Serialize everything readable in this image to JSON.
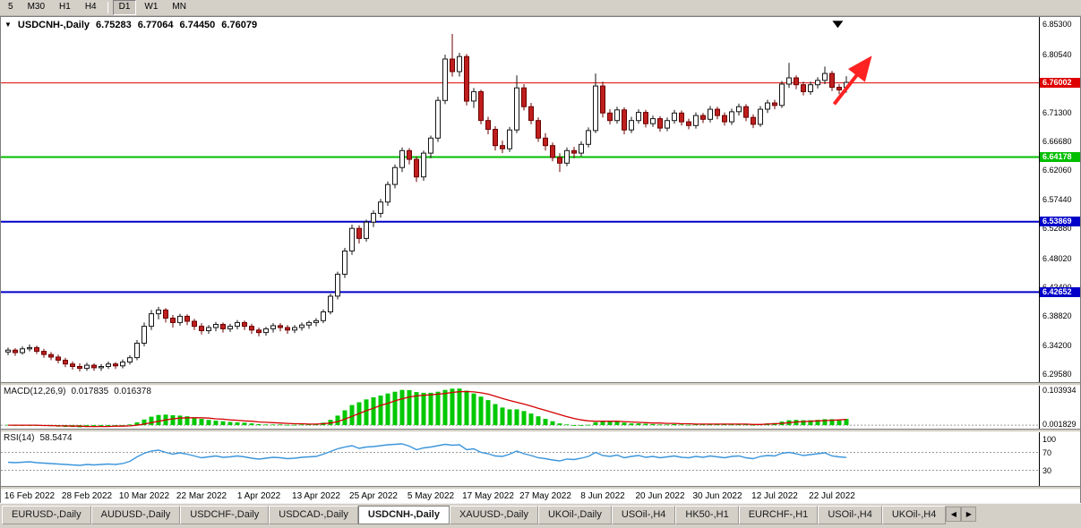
{
  "toolbar": {
    "timeframes": [
      {
        "label": "5"
      },
      {
        "label": "M30"
      },
      {
        "label": "H1"
      },
      {
        "label": "H4",
        "divider_after": true
      },
      {
        "label": "D1",
        "active": true
      },
      {
        "label": "W1"
      },
      {
        "label": "MN"
      }
    ]
  },
  "chart": {
    "title": {
      "symbol": "USDCNH-,Daily",
      "open": "6.75283",
      "high": "6.77064",
      "low": "6.74450",
      "close": "6.76079",
      "collapse_icon": "▼"
    },
    "colors": {
      "up_fill": "#FFFFFF",
      "up_stroke": "#151515",
      "down_fill": "#C01E1E",
      "down_stroke": "#6B0000",
      "macd_hist": "#00C800",
      "macd_signal": "#D40000",
      "rsi_line": "#3C96DC",
      "arrow": "#FF2222"
    }
  },
  "chart_data": {
    "type": "candlestick",
    "symbol": "USDCNH-,Daily",
    "ylim": [
      6.283,
      6.865
    ],
    "y_ticks": [
      {
        "label": "6.85300",
        "value": 6.853
      },
      {
        "label": "6.80540",
        "value": 6.8054
      },
      {
        "label": "6.71300",
        "value": 6.713
      },
      {
        "label": "6.66680",
        "value": 6.6668
      },
      {
        "label": "6.62060",
        "value": 6.6206
      },
      {
        "label": "6.57440",
        "value": 6.5744
      },
      {
        "label": "6.52880",
        "value": 6.5288
      },
      {
        "label": "6.48020",
        "value": 6.4802
      },
      {
        "label": "6.43400",
        "value": 6.434
      },
      {
        "label": "6.38820",
        "value": 6.3882
      },
      {
        "label": "6.34200",
        "value": 6.342
      },
      {
        "label": "6.29580",
        "value": 6.2958
      }
    ],
    "hlines": [
      {
        "label": "6.76002",
        "value": 6.76002,
        "color": "#DD0000",
        "width": 1
      },
      {
        "label": "6.64178",
        "value": 6.64178,
        "color": "#00BE00",
        "width": 2
      },
      {
        "label": "6.53869",
        "value": 6.53869,
        "color": "#0000C8",
        "width": 2
      },
      {
        "label": "6.42652",
        "value": 6.42652,
        "color": "#0000C8",
        "width": 2
      }
    ],
    "x_ticks": [
      {
        "index": 3,
        "label": "16 Feb 2022"
      },
      {
        "index": 11,
        "label": "28 Feb 2022"
      },
      {
        "index": 19,
        "label": "10 Mar 2022"
      },
      {
        "index": 27,
        "label": "22 Mar 2022"
      },
      {
        "index": 35,
        "label": "1 Apr 2022"
      },
      {
        "index": 43,
        "label": "13 Apr 2022"
      },
      {
        "index": 51,
        "label": "25 Apr 2022"
      },
      {
        "index": 59,
        "label": "5 May 2022"
      },
      {
        "index": 67,
        "label": "17 May 2022"
      },
      {
        "index": 75,
        "label": "27 May 2022"
      },
      {
        "index": 83,
        "label": "8 Jun 2022"
      },
      {
        "index": 91,
        "label": "20 Jun 2022"
      },
      {
        "index": 99,
        "label": "30 Jun 2022"
      },
      {
        "index": 107,
        "label": "12 Jul 2022"
      },
      {
        "index": 115,
        "label": "22 Jul 2022"
      }
    ],
    "ohlc": [
      [
        6.331,
        6.338,
        6.326,
        6.334
      ],
      [
        6.334,
        6.337,
        6.325,
        6.33
      ],
      [
        6.33,
        6.34,
        6.327,
        6.336
      ],
      [
        6.336,
        6.343,
        6.332,
        6.338
      ],
      [
        6.338,
        6.341,
        6.328,
        6.332
      ],
      [
        6.332,
        6.336,
        6.322,
        6.327
      ],
      [
        6.327,
        6.331,
        6.318,
        6.323
      ],
      [
        6.323,
        6.327,
        6.313,
        6.318
      ],
      [
        6.318,
        6.322,
        6.307,
        6.312
      ],
      [
        6.312,
        6.316,
        6.303,
        6.308
      ],
      [
        6.308,
        6.313,
        6.3,
        6.305
      ],
      [
        6.305,
        6.314,
        6.301,
        6.31
      ],
      [
        6.31,
        6.313,
        6.301,
        6.306
      ],
      [
        6.306,
        6.312,
        6.301,
        6.308
      ],
      [
        6.308,
        6.316,
        6.304,
        6.312
      ],
      [
        6.312,
        6.315,
        6.304,
        6.309
      ],
      [
        6.309,
        6.319,
        6.305,
        6.315
      ],
      [
        6.315,
        6.326,
        6.311,
        6.322
      ],
      [
        6.322,
        6.35,
        6.318,
        6.345
      ],
      [
        6.345,
        6.378,
        6.34,
        6.372
      ],
      [
        6.372,
        6.398,
        6.366,
        6.392
      ],
      [
        6.392,
        6.403,
        6.383,
        6.398
      ],
      [
        6.398,
        6.401,
        6.378,
        6.385
      ],
      [
        6.385,
        6.39,
        6.37,
        6.378
      ],
      [
        6.378,
        6.392,
        6.373,
        6.388
      ],
      [
        6.388,
        6.391,
        6.374,
        6.38
      ],
      [
        6.38,
        6.384,
        6.366,
        6.372
      ],
      [
        6.372,
        6.377,
        6.359,
        6.365
      ],
      [
        6.365,
        6.374,
        6.36,
        6.37
      ],
      [
        6.37,
        6.379,
        6.364,
        6.375
      ],
      [
        6.375,
        6.378,
        6.362,
        6.368
      ],
      [
        6.368,
        6.376,
        6.363,
        6.372
      ],
      [
        6.372,
        6.382,
        6.367,
        6.378
      ],
      [
        6.378,
        6.381,
        6.366,
        6.372
      ],
      [
        6.372,
        6.376,
        6.36,
        6.366
      ],
      [
        6.366,
        6.37,
        6.356,
        6.362
      ],
      [
        6.362,
        6.371,
        6.357,
        6.368
      ],
      [
        6.368,
        6.377,
        6.362,
        6.373
      ],
      [
        6.373,
        6.377,
        6.364,
        6.37
      ],
      [
        6.37,
        6.374,
        6.36,
        6.366
      ],
      [
        6.366,
        6.374,
        6.361,
        6.37
      ],
      [
        6.37,
        6.378,
        6.365,
        6.374
      ],
      [
        6.374,
        6.381,
        6.368,
        6.378
      ],
      [
        6.378,
        6.385,
        6.372,
        6.381
      ],
      [
        6.381,
        6.399,
        6.377,
        6.395
      ],
      [
        6.395,
        6.424,
        6.391,
        6.42
      ],
      [
        6.42,
        6.459,
        6.415,
        6.455
      ],
      [
        6.455,
        6.497,
        6.449,
        6.492
      ],
      [
        6.492,
        6.534,
        6.486,
        6.528
      ],
      [
        6.528,
        6.533,
        6.504,
        6.512
      ],
      [
        6.512,
        6.542,
        6.507,
        6.538
      ],
      [
        6.538,
        6.557,
        6.53,
        6.552
      ],
      [
        6.552,
        6.575,
        6.545,
        6.57
      ],
      [
        6.57,
        6.603,
        6.564,
        6.598
      ],
      [
        6.598,
        6.63,
        6.592,
        6.625
      ],
      [
        6.625,
        6.657,
        6.618,
        6.652
      ],
      [
        6.652,
        6.656,
        6.63,
        6.638
      ],
      [
        6.638,
        6.643,
        6.602,
        6.61
      ],
      [
        6.61,
        6.652,
        6.604,
        6.648
      ],
      [
        6.648,
        6.676,
        6.64,
        6.672
      ],
      [
        6.672,
        6.738,
        6.666,
        6.732
      ],
      [
        6.732,
        6.805,
        6.726,
        6.798
      ],
      [
        6.798,
        6.838,
        6.77,
        6.778
      ],
      [
        6.778,
        6.808,
        6.77,
        6.802
      ],
      [
        6.802,
        6.806,
        6.724,
        6.731
      ],
      [
        6.731,
        6.752,
        6.72,
        6.746
      ],
      [
        6.746,
        6.749,
        6.694,
        6.7
      ],
      [
        6.7,
        6.706,
        6.678,
        6.686
      ],
      [
        6.686,
        6.691,
        6.652,
        6.66
      ],
      [
        6.66,
        6.668,
        6.648,
        6.655
      ],
      [
        6.655,
        6.69,
        6.65,
        6.685
      ],
      [
        6.685,
        6.772,
        6.68,
        6.752
      ],
      [
        6.752,
        6.758,
        6.716,
        6.722
      ],
      [
        6.722,
        6.728,
        6.694,
        6.7
      ],
      [
        6.7,
        6.705,
        6.666,
        6.672
      ],
      [
        6.672,
        6.68,
        6.652,
        6.66
      ],
      [
        6.66,
        6.665,
        6.635,
        6.641
      ],
      [
        6.641,
        6.648,
        6.618,
        6.632
      ],
      [
        6.632,
        6.657,
        6.627,
        6.652
      ],
      [
        6.652,
        6.658,
        6.64,
        6.648
      ],
      [
        6.648,
        6.667,
        6.643,
        6.662
      ],
      [
        6.662,
        6.689,
        6.657,
        6.684
      ],
      [
        6.684,
        6.775,
        6.68,
        6.755
      ],
      [
        6.755,
        6.762,
        6.705,
        6.712
      ],
      [
        6.712,
        6.718,
        6.694,
        6.7
      ],
      [
        6.7,
        6.722,
        6.695,
        6.717
      ],
      [
        6.717,
        6.721,
        6.678,
        6.685
      ],
      [
        6.685,
        6.706,
        6.68,
        6.7
      ],
      [
        6.7,
        6.718,
        6.695,
        6.713
      ],
      [
        6.713,
        6.717,
        6.689,
        6.695
      ],
      [
        6.695,
        6.708,
        6.69,
        6.703
      ],
      [
        6.703,
        6.707,
        6.682,
        6.688
      ],
      [
        6.688,
        6.705,
        6.683,
        6.7
      ],
      [
        6.7,
        6.717,
        6.695,
        6.712
      ],
      [
        6.712,
        6.716,
        6.692,
        6.698
      ],
      [
        6.698,
        6.703,
        6.686,
        6.692
      ],
      [
        6.692,
        6.713,
        6.687,
        6.708
      ],
      [
        6.708,
        6.712,
        6.696,
        6.702
      ],
      [
        6.702,
        6.723,
        6.697,
        6.718
      ],
      [
        6.718,
        6.722,
        6.702,
        6.708
      ],
      [
        6.708,
        6.713,
        6.692,
        6.698
      ],
      [
        6.698,
        6.719,
        6.693,
        6.714
      ],
      [
        6.714,
        6.727,
        6.708,
        6.722
      ],
      [
        6.722,
        6.726,
        6.699,
        6.705
      ],
      [
        6.705,
        6.71,
        6.688,
        6.694
      ],
      [
        6.694,
        6.723,
        6.69,
        6.718
      ],
      [
        6.718,
        6.733,
        6.712,
        6.728
      ],
      [
        6.728,
        6.733,
        6.718,
        6.724
      ],
      [
        6.724,
        6.763,
        6.72,
        6.758
      ],
      [
        6.758,
        6.792,
        6.752,
        6.768
      ],
      [
        6.768,
        6.772,
        6.75,
        6.757
      ],
      [
        6.757,
        6.762,
        6.74,
        6.746
      ],
      [
        6.746,
        6.762,
        6.741,
        6.757
      ],
      [
        6.757,
        6.769,
        6.751,
        6.764
      ],
      [
        6.764,
        6.786,
        6.758,
        6.775
      ],
      [
        6.775,
        6.779,
        6.747,
        6.753
      ],
      [
        6.753,
        6.758,
        6.742,
        6.7488
      ],
      [
        6.75283,
        6.77064,
        6.7445,
        6.76079
      ]
    ],
    "annotations": {
      "arrow": {
        "i1": 115.3,
        "p1": 6.726,
        "i2": 119.8,
        "p2": 6.792
      },
      "triangle": {
        "i": 115.8,
        "p": 6.859
      }
    },
    "macd": {
      "title": "MACD(12,26,9)",
      "value": "0.017835",
      "signal_value": "0.016378",
      "ylim": [
        -0.01,
        0.112
      ],
      "axis_labels": [
        {
          "label": "0.103934",
          "value": 0.103934
        },
        {
          "label": "0.001829",
          "value": 0.001829
        }
      ],
      "hist": [
        0.001,
        0.0,
        -0.001,
        0.0,
        -0.001,
        -0.002,
        -0.003,
        -0.004,
        -0.005,
        -0.005,
        -0.006,
        -0.005,
        -0.005,
        -0.004,
        -0.003,
        -0.003,
        -0.001,
        0.002,
        0.008,
        0.016,
        0.024,
        0.029,
        0.03,
        0.028,
        0.027,
        0.025,
        0.022,
        0.018,
        0.015,
        0.013,
        0.011,
        0.009,
        0.008,
        0.007,
        0.005,
        0.003,
        0.002,
        0.002,
        0.002,
        0.001,
        0.001,
        0.002,
        0.002,
        0.003,
        0.007,
        0.015,
        0.027,
        0.042,
        0.057,
        0.065,
        0.073,
        0.079,
        0.084,
        0.09,
        0.095,
        0.1,
        0.0995,
        0.094,
        0.092,
        0.092,
        0.095,
        0.1,
        0.1035,
        0.1039,
        0.098,
        0.09,
        0.081,
        0.071,
        0.06,
        0.05,
        0.045,
        0.045,
        0.04,
        0.033,
        0.025,
        0.018,
        0.011,
        0.005,
        0.002,
        0.0,
        -0.001,
        0.001,
        0.008,
        0.011,
        0.01,
        0.01,
        0.007,
        0.005,
        0.005,
        0.004,
        0.003,
        0.002,
        0.002,
        0.003,
        0.002,
        0.001,
        0.002,
        0.002,
        0.003,
        0.003,
        0.002,
        0.002,
        0.003,
        0.002,
        0.001,
        0.003,
        0.005,
        0.006,
        0.01,
        0.014,
        0.015,
        0.014,
        0.014,
        0.015,
        0.017,
        0.017,
        0.016,
        0.017835
      ],
      "signal": [
        0.0,
        0.0,
        0.0,
        0.0,
        0.0,
        -0.001,
        -0.001,
        -0.002,
        -0.002,
        -0.003,
        -0.003,
        -0.004,
        -0.004,
        -0.004,
        -0.004,
        -0.003,
        -0.003,
        -0.002,
        0.0,
        0.003,
        0.007,
        0.011,
        0.015,
        0.018,
        0.02,
        0.021,
        0.021,
        0.021,
        0.02,
        0.018,
        0.017,
        0.015,
        0.014,
        0.012,
        0.011,
        0.009,
        0.008,
        0.007,
        0.006,
        0.005,
        0.004,
        0.004,
        0.003,
        0.003,
        0.004,
        0.006,
        0.01,
        0.017,
        0.025,
        0.033,
        0.041,
        0.048,
        0.056,
        0.062,
        0.069,
        0.075,
        0.08,
        0.083,
        0.085,
        0.086,
        0.088,
        0.09,
        0.093,
        0.095,
        0.0955,
        0.0945,
        0.092,
        0.088,
        0.082,
        0.076,
        0.07,
        0.065,
        0.06,
        0.054,
        0.048,
        0.042,
        0.036,
        0.03,
        0.024,
        0.019,
        0.015,
        0.012,
        0.011,
        0.011,
        0.011,
        0.011,
        0.01,
        0.009,
        0.008,
        0.007,
        0.006,
        0.006,
        0.005,
        0.005,
        0.004,
        0.004,
        0.003,
        0.003,
        0.003,
        0.003,
        0.003,
        0.003,
        0.003,
        0.003,
        0.002,
        0.002,
        0.003,
        0.004,
        0.005,
        0.007,
        0.009,
        0.01,
        0.011,
        0.012,
        0.013,
        0.014,
        0.015,
        0.016378
      ]
    },
    "rsi": {
      "title": "RSI(14)",
      "value": "58.5474",
      "ylim": [
        -5,
        115
      ],
      "levels": [
        {
          "label": "100",
          "value": 100,
          "line": false
        },
        {
          "label": "70",
          "value": 70,
          "line": true
        },
        {
          "label": "30",
          "value": 30,
          "line": true
        }
      ],
      "values": [
        48,
        47,
        48,
        49,
        47,
        46,
        45,
        44,
        43,
        42,
        41,
        43,
        42,
        43,
        44,
        43,
        45,
        50,
        60,
        68,
        73,
        75,
        70,
        66,
        69,
        66,
        62,
        58,
        60,
        62,
        59,
        60,
        62,
        60,
        57,
        55,
        57,
        59,
        58,
        56,
        57,
        59,
        60,
        61,
        66,
        72,
        78,
        82,
        85,
        79,
        82,
        83,
        85,
        87,
        88,
        89,
        84,
        76,
        80,
        82,
        85,
        88,
        86,
        87,
        76,
        78,
        70,
        67,
        62,
        61,
        66,
        73,
        67,
        63,
        58,
        56,
        53,
        51,
        55,
        54,
        57,
        61,
        70,
        63,
        61,
        64,
        58,
        61,
        63,
        59,
        61,
        58,
        60,
        62,
        59,
        58,
        61,
        59,
        62,
        60,
        58,
        61,
        62,
        58,
        56,
        61,
        63,
        62,
        68,
        70,
        67,
        63,
        65,
        67,
        69,
        62,
        60,
        58.5474
      ]
    }
  },
  "tabs": {
    "scroll_left": "◀",
    "scroll_right": "▶",
    "items": [
      {
        "label": "EURUSD-,Daily"
      },
      {
        "label": "AUDUSD-,Daily"
      },
      {
        "label": "USDCHF-,Daily"
      },
      {
        "label": "USDCAD-,Daily"
      },
      {
        "label": "USDCNH-,Daily",
        "active": true
      },
      {
        "label": "XAUUSD-,Daily"
      },
      {
        "label": "UKOil-,Daily"
      },
      {
        "label": "USOil-,H4"
      },
      {
        "label": "HK50-,H1"
      },
      {
        "label": "EURCHF-,H1"
      },
      {
        "label": "USOil-,H4"
      },
      {
        "label": "UKOil-,H4"
      }
    ]
  }
}
